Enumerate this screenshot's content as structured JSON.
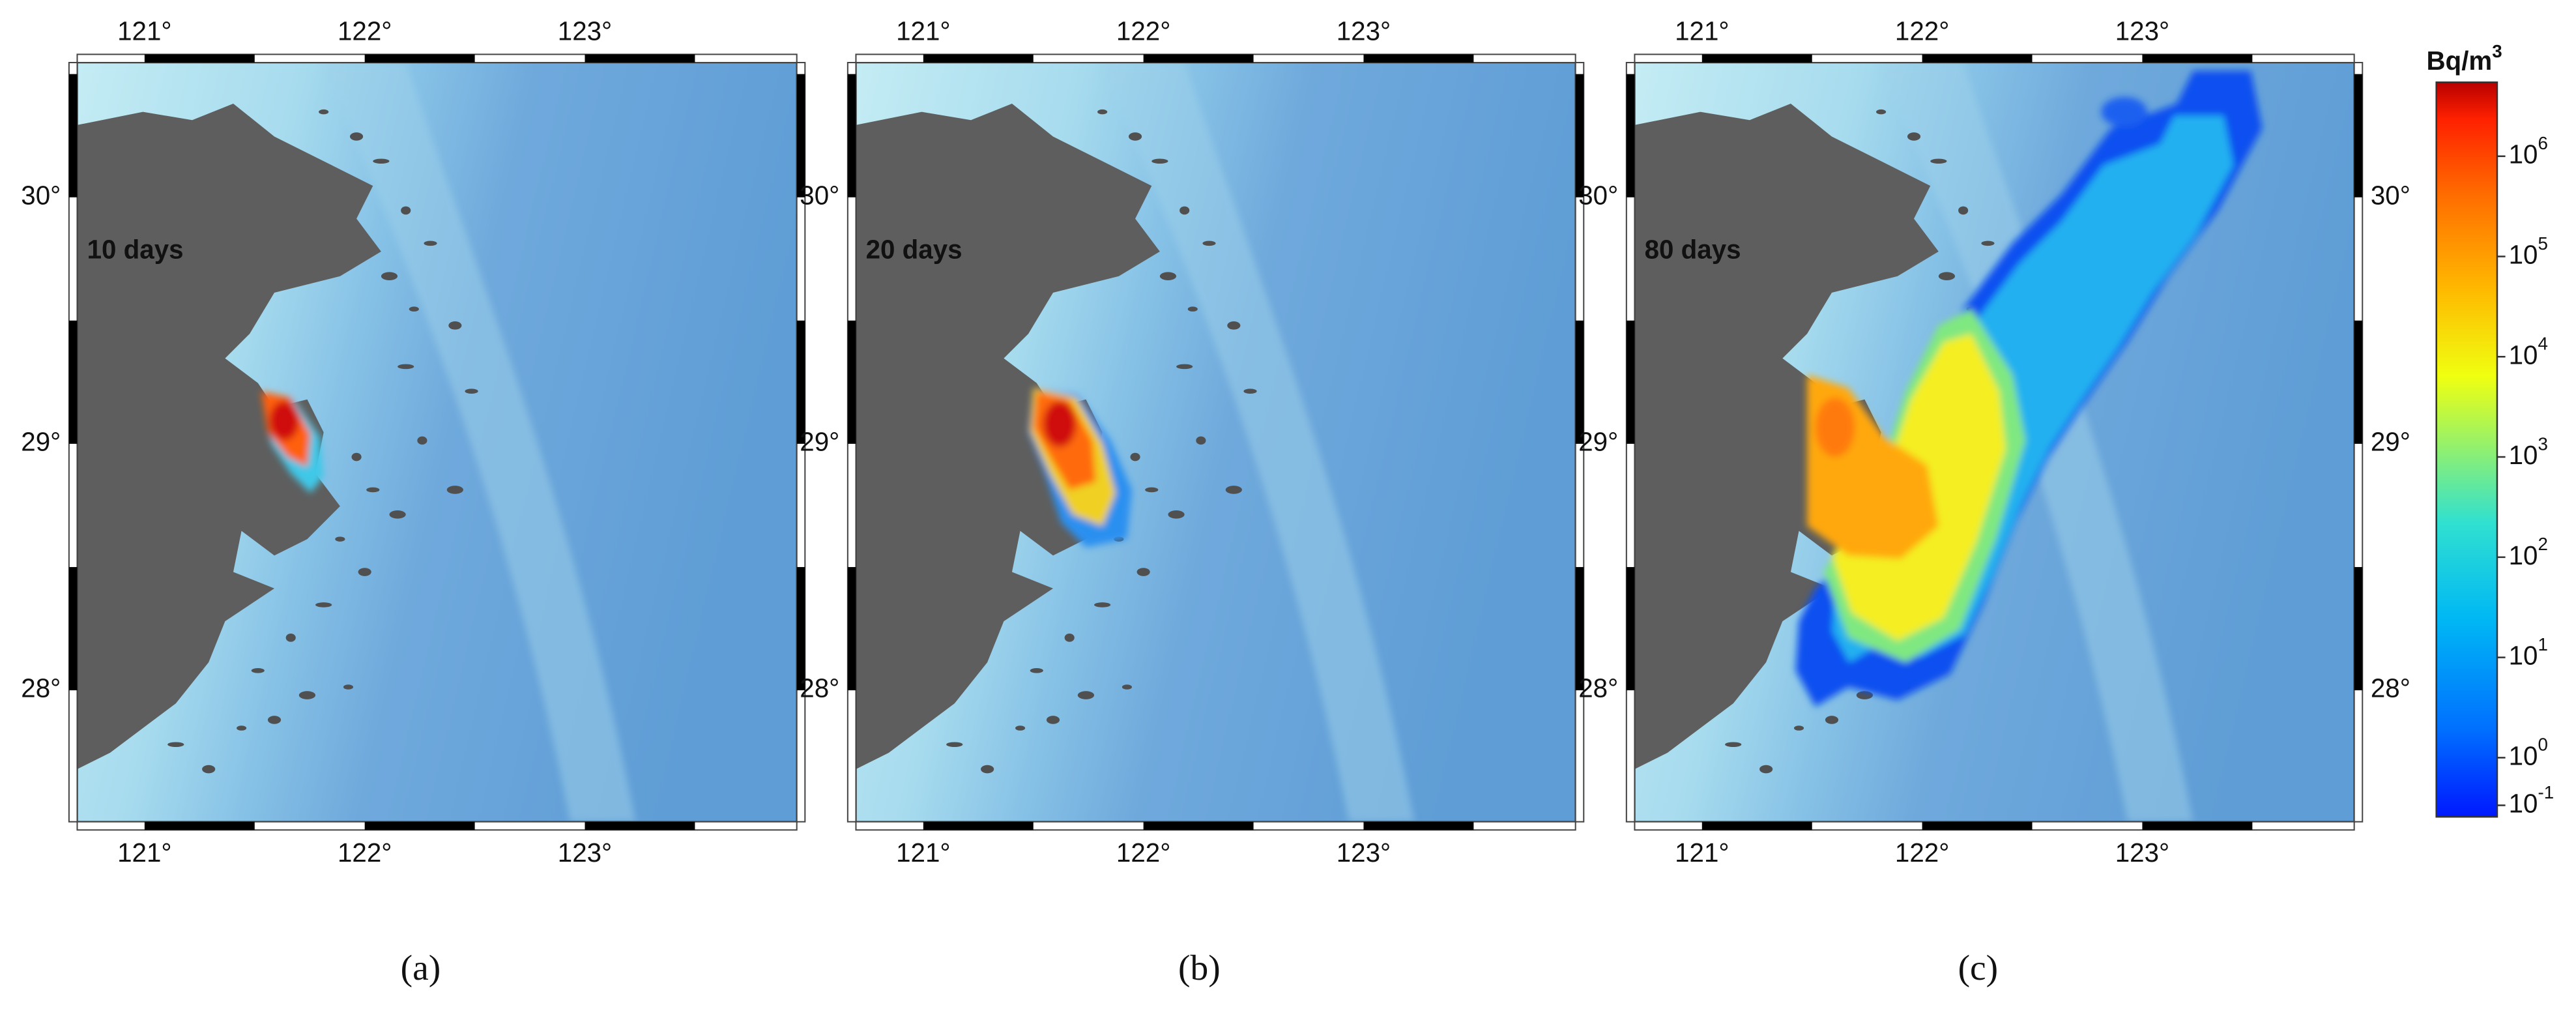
{
  "panels": [
    {
      "label": "10 days",
      "caption": "(a)",
      "lon_labels": [
        "121°",
        "122°",
        "123°"
      ],
      "lat_labels": [
        "30°",
        "29°",
        "28°"
      ]
    },
    {
      "label": "20 days",
      "caption": "(b)",
      "lon_labels": [
        "121°",
        "122°",
        "123°"
      ],
      "lat_labels": [
        "30°",
        "29°",
        "28°"
      ]
    },
    {
      "label": "80 days",
      "caption": "(c)",
      "lon_labels": [
        "121°",
        "122°",
        "123°"
      ],
      "lat_labels": [
        "30°",
        "29°",
        "28°"
      ]
    }
  ],
  "colorbar": {
    "title": {
      "base": "Bq/m",
      "sup": "3"
    },
    "ticks": [
      {
        "base": "10",
        "exp": "6"
      },
      {
        "base": "10",
        "exp": "5"
      },
      {
        "base": "10",
        "exp": "4"
      },
      {
        "base": "10",
        "exp": "3"
      },
      {
        "base": "10",
        "exp": "2"
      },
      {
        "base": "10",
        "exp": "1"
      },
      {
        "base": "10",
        "exp": "0"
      },
      {
        "base": "10",
        "exp": "-1"
      }
    ]
  }
}
